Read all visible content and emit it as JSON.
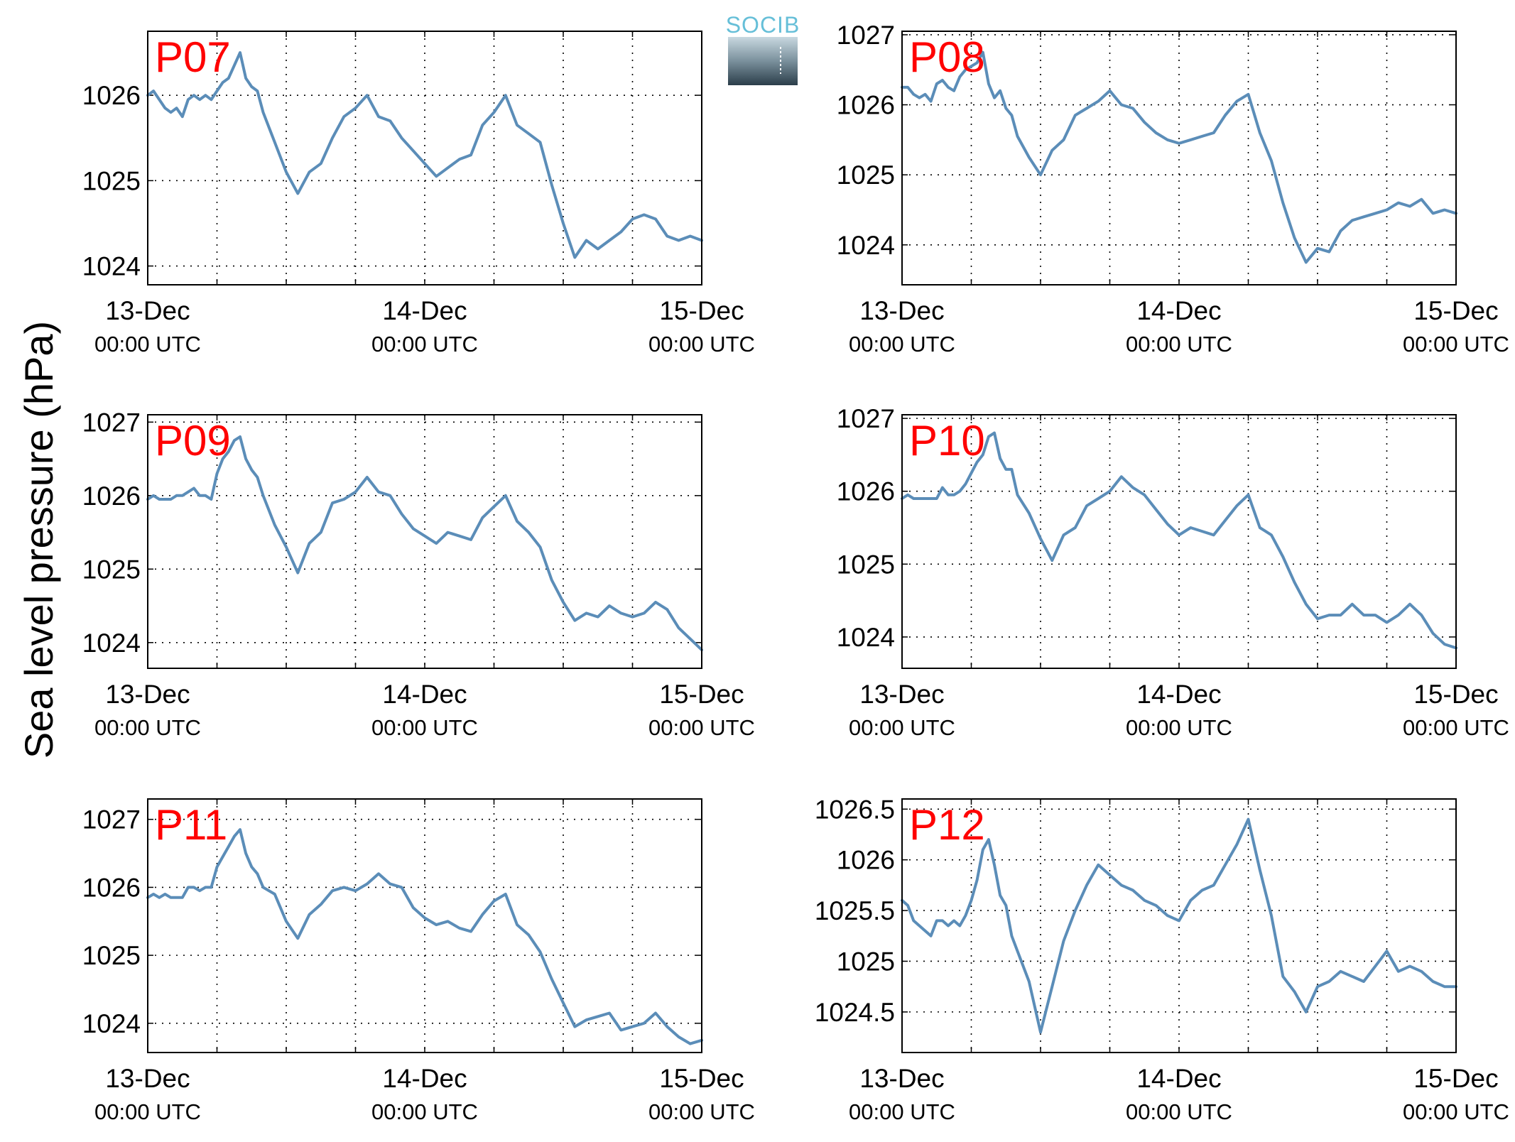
{
  "ylabel": "Sea level pressure (hPa)",
  "logo": {
    "text": "SOCIB"
  },
  "style": {
    "line_color": "#5b8db8",
    "title_color": "#ff0000",
    "grid": "dotted"
  },
  "chart_data": [
    {
      "type": "line",
      "title": "P07",
      "ylim": [
        1023.78,
        1026.75
      ],
      "yticks": [
        1024,
        1025,
        1026
      ],
      "xlim": [
        0,
        48
      ],
      "xticks": [
        0,
        6,
        12,
        18,
        24,
        30,
        36,
        42,
        48
      ],
      "xlabels": [
        {
          "x": 0,
          "date": "13-Dec",
          "time": "00:00 UTC"
        },
        {
          "x": 24,
          "date": "14-Dec",
          "time": "00:00 UTC"
        },
        {
          "x": 48,
          "date": "15-Dec",
          "time": "00:00 UTC"
        }
      ],
      "series": [
        {
          "x": [
            0,
            0.5,
            1,
            1.5,
            2,
            2.5,
            3,
            3.5,
            4,
            4.5,
            5,
            5.5,
            6,
            6.5,
            7,
            7.5,
            8,
            8.5,
            9,
            9.5,
            10,
            11,
            12,
            13,
            14,
            15,
            16,
            17,
            18,
            19,
            20,
            21,
            22,
            23,
            24,
            25,
            26,
            27,
            28,
            29,
            30,
            31,
            32,
            33,
            34,
            35,
            36,
            37,
            38,
            39,
            40,
            41,
            42,
            43,
            44,
            45,
            46,
            47,
            48
          ],
          "y": [
            1026.0,
            1026.05,
            1025.95,
            1025.85,
            1025.8,
            1025.85,
            1025.75,
            1025.95,
            1026.0,
            1025.95,
            1026.0,
            1025.95,
            1026.05,
            1026.15,
            1026.2,
            1026.35,
            1026.5,
            1026.2,
            1026.1,
            1026.05,
            1025.8,
            1025.45,
            1025.1,
            1024.85,
            1025.1,
            1025.2,
            1025.5,
            1025.75,
            1025.85,
            1026.0,
            1025.75,
            1025.7,
            1025.5,
            1025.35,
            1025.2,
            1025.05,
            1025.15,
            1025.25,
            1025.3,
            1025.65,
            1025.8,
            1026.0,
            1025.65,
            1025.55,
            1025.45,
            1024.95,
            1024.5,
            1024.1,
            1024.3,
            1024.2,
            1024.3,
            1024.4,
            1024.55,
            1024.6,
            1024.55,
            1024.35,
            1024.3,
            1024.35,
            1024.3
          ]
        }
      ]
    },
    {
      "type": "line",
      "title": "P08",
      "ylim": [
        1023.43,
        1027.05
      ],
      "yticks": [
        1024,
        1025,
        1026,
        1027
      ],
      "xlim": [
        0,
        48
      ],
      "xticks": [
        0,
        6,
        12,
        18,
        24,
        30,
        36,
        42,
        48
      ],
      "xlabels": [
        {
          "x": 0,
          "date": "13-Dec",
          "time": "00:00 UTC"
        },
        {
          "x": 24,
          "date": "14-Dec",
          "time": "00:00 UTC"
        },
        {
          "x": 48,
          "date": "15-Dec",
          "time": "00:00 UTC"
        }
      ],
      "series": [
        {
          "x": [
            0,
            0.5,
            1,
            1.5,
            2,
            2.5,
            3,
            3.5,
            4,
            4.5,
            5,
            5.5,
            6,
            6.5,
            7,
            7.5,
            8,
            8.5,
            9,
            9.5,
            10,
            11,
            12,
            13,
            14,
            15,
            16,
            17,
            18,
            19,
            20,
            21,
            22,
            23,
            24,
            25,
            26,
            27,
            28,
            29,
            30,
            31,
            32,
            33,
            34,
            35,
            36,
            37,
            38,
            39,
            40,
            41,
            42,
            43,
            44,
            45,
            46,
            47,
            48
          ],
          "y": [
            1026.25,
            1026.25,
            1026.15,
            1026.1,
            1026.15,
            1026.05,
            1026.3,
            1026.35,
            1026.25,
            1026.2,
            1026.4,
            1026.5,
            1026.55,
            1026.6,
            1026.75,
            1026.3,
            1026.1,
            1026.2,
            1025.95,
            1025.85,
            1025.55,
            1025.25,
            1025.0,
            1025.35,
            1025.5,
            1025.85,
            1025.95,
            1026.05,
            1026.2,
            1026.0,
            1025.95,
            1025.75,
            1025.6,
            1025.5,
            1025.45,
            1025.5,
            1025.55,
            1025.6,
            1025.85,
            1026.05,
            1026.15,
            1025.6,
            1025.2,
            1024.6,
            1024.1,
            1023.75,
            1023.95,
            1023.9,
            1024.2,
            1024.35,
            1024.4,
            1024.45,
            1024.5,
            1024.6,
            1024.55,
            1024.65,
            1024.45,
            1024.5,
            1024.45
          ]
        }
      ]
    },
    {
      "type": "line",
      "title": "P09",
      "ylim": [
        1023.65,
        1027.1
      ],
      "yticks": [
        1024,
        1025,
        1026,
        1027
      ],
      "xlim": [
        0,
        48
      ],
      "xticks": [
        0,
        6,
        12,
        18,
        24,
        30,
        36,
        42,
        48
      ],
      "xlabels": [
        {
          "x": 0,
          "date": "13-Dec",
          "time": "00:00 UTC"
        },
        {
          "x": 24,
          "date": "14-Dec",
          "time": "00:00 UTC"
        },
        {
          "x": 48,
          "date": "15-Dec",
          "time": "00:00 UTC"
        }
      ],
      "series": [
        {
          "x": [
            0,
            0.5,
            1,
            1.5,
            2,
            2.5,
            3,
            3.5,
            4,
            4.5,
            5,
            5.5,
            6,
            6.5,
            7,
            7.5,
            8,
            8.5,
            9,
            9.5,
            10,
            11,
            12,
            13,
            14,
            15,
            16,
            17,
            18,
            19,
            20,
            21,
            22,
            23,
            24,
            25,
            26,
            27,
            28,
            29,
            30,
            31,
            32,
            33,
            34,
            35,
            36,
            37,
            38,
            39,
            40,
            41,
            42,
            43,
            44,
            45,
            46,
            47,
            48
          ],
          "y": [
            1025.95,
            1026.0,
            1025.95,
            1025.95,
            1025.95,
            1026.0,
            1026.0,
            1026.05,
            1026.1,
            1026.0,
            1026.0,
            1025.95,
            1026.3,
            1026.5,
            1026.6,
            1026.75,
            1026.8,
            1026.5,
            1026.35,
            1026.25,
            1026.0,
            1025.6,
            1025.3,
            1024.95,
            1025.35,
            1025.5,
            1025.9,
            1025.95,
            1026.05,
            1026.25,
            1026.05,
            1026.0,
            1025.75,
            1025.55,
            1025.45,
            1025.35,
            1025.5,
            1025.45,
            1025.4,
            1025.7,
            1025.85,
            1026.0,
            1025.65,
            1025.5,
            1025.3,
            1024.85,
            1024.55,
            1024.3,
            1024.4,
            1024.35,
            1024.5,
            1024.4,
            1024.35,
            1024.4,
            1024.55,
            1024.45,
            1024.2,
            1024.05,
            1023.9
          ]
        }
      ]
    },
    {
      "type": "line",
      "title": "P10",
      "ylim": [
        1023.57,
        1027.05
      ],
      "yticks": [
        1024,
        1025,
        1026,
        1027
      ],
      "xlim": [
        0,
        48
      ],
      "xticks": [
        0,
        6,
        12,
        18,
        24,
        30,
        36,
        42,
        48
      ],
      "xlabels": [
        {
          "x": 0,
          "date": "13-Dec",
          "time": "00:00 UTC"
        },
        {
          "x": 24,
          "date": "14-Dec",
          "time": "00:00 UTC"
        },
        {
          "x": 48,
          "date": "15-Dec",
          "time": "00:00 UTC"
        }
      ],
      "series": [
        {
          "x": [
            0,
            0.5,
            1,
            1.5,
            2,
            2.5,
            3,
            3.5,
            4,
            4.5,
            5,
            5.5,
            6,
            6.5,
            7,
            7.5,
            8,
            8.5,
            9,
            9.5,
            10,
            11,
            12,
            13,
            14,
            15,
            16,
            17,
            18,
            19,
            20,
            21,
            22,
            23,
            24,
            25,
            26,
            27,
            28,
            29,
            30,
            31,
            32,
            33,
            34,
            35,
            36,
            37,
            38,
            39,
            40,
            41,
            42,
            43,
            44,
            45,
            46,
            47,
            48
          ],
          "y": [
            1025.9,
            1025.95,
            1025.9,
            1025.9,
            1025.9,
            1025.9,
            1025.9,
            1026.05,
            1025.95,
            1025.95,
            1026.0,
            1026.1,
            1026.25,
            1026.4,
            1026.5,
            1026.75,
            1026.8,
            1026.45,
            1026.3,
            1026.3,
            1025.95,
            1025.7,
            1025.35,
            1025.05,
            1025.4,
            1025.5,
            1025.8,
            1025.9,
            1026.0,
            1026.2,
            1026.05,
            1025.95,
            1025.75,
            1025.55,
            1025.4,
            1025.5,
            1025.45,
            1025.4,
            1025.6,
            1025.8,
            1025.95,
            1025.5,
            1025.4,
            1025.1,
            1024.75,
            1024.45,
            1024.25,
            1024.3,
            1024.3,
            1024.45,
            1024.3,
            1024.3,
            1024.2,
            1024.3,
            1024.45,
            1024.3,
            1024.05,
            1023.9,
            1023.85
          ]
        }
      ]
    },
    {
      "type": "line",
      "title": "P11",
      "ylim": [
        1023.57,
        1027.3
      ],
      "yticks": [
        1024,
        1025,
        1026,
        1027
      ],
      "xlim": [
        0,
        48
      ],
      "xticks": [
        0,
        6,
        12,
        18,
        24,
        30,
        36,
        42,
        48
      ],
      "xlabels": [
        {
          "x": 0,
          "date": "13-Dec",
          "time": "00:00 UTC"
        },
        {
          "x": 24,
          "date": "14-Dec",
          "time": "00:00 UTC"
        },
        {
          "x": 48,
          "date": "15-Dec",
          "time": "00:00 UTC"
        }
      ],
      "series": [
        {
          "x": [
            0,
            0.5,
            1,
            1.5,
            2,
            2.5,
            3,
            3.5,
            4,
            4.5,
            5,
            5.5,
            6,
            6.5,
            7,
            7.5,
            8,
            8.5,
            9,
            9.5,
            10,
            11,
            12,
            13,
            14,
            15,
            16,
            17,
            18,
            19,
            20,
            21,
            22,
            23,
            24,
            25,
            26,
            27,
            28,
            29,
            30,
            31,
            32,
            33,
            34,
            35,
            36,
            37,
            38,
            39,
            40,
            41,
            42,
            43,
            44,
            45,
            46,
            47,
            48
          ],
          "y": [
            1025.85,
            1025.9,
            1025.85,
            1025.9,
            1025.85,
            1025.85,
            1025.85,
            1026.0,
            1026.0,
            1025.95,
            1026.0,
            1026.0,
            1026.3,
            1026.45,
            1026.6,
            1026.75,
            1026.85,
            1026.5,
            1026.3,
            1026.2,
            1026.0,
            1025.9,
            1025.5,
            1025.25,
            1025.6,
            1025.75,
            1025.95,
            1026.0,
            1025.95,
            1026.05,
            1026.2,
            1026.05,
            1026.0,
            1025.7,
            1025.55,
            1025.45,
            1025.5,
            1025.4,
            1025.35,
            1025.6,
            1025.8,
            1025.9,
            1025.45,
            1025.3,
            1025.05,
            1024.65,
            1024.3,
            1023.95,
            1024.05,
            1024.1,
            1024.15,
            1023.9,
            1023.95,
            1024.0,
            1024.15,
            1023.95,
            1023.8,
            1023.7,
            1023.75
          ]
        }
      ]
    },
    {
      "type": "line",
      "title": "P12",
      "ylim": [
        1024.1,
        1026.6
      ],
      "yticks": [
        1024.5,
        1025,
        1025.5,
        1026,
        1026.5
      ],
      "xlim": [
        0,
        48
      ],
      "xticks": [
        0,
        6,
        12,
        18,
        24,
        30,
        36,
        42,
        48
      ],
      "xlabels": [
        {
          "x": 0,
          "date": "13-Dec",
          "time": "00:00 UTC"
        },
        {
          "x": 24,
          "date": "14-Dec",
          "time": "00:00 UTC"
        },
        {
          "x": 48,
          "date": "15-Dec",
          "time": "00:00 UTC"
        }
      ],
      "series": [
        {
          "x": [
            0,
            0.5,
            1,
            1.5,
            2,
            2.5,
            3,
            3.5,
            4,
            4.5,
            5,
            5.5,
            6,
            6.5,
            7,
            7.5,
            8,
            8.5,
            9,
            9.5,
            10,
            11,
            12,
            13,
            14,
            15,
            16,
            17,
            18,
            19,
            20,
            21,
            22,
            23,
            24,
            25,
            26,
            27,
            28,
            29,
            30,
            31,
            32,
            33,
            34,
            35,
            36,
            37,
            38,
            39,
            40,
            41,
            42,
            43,
            44,
            45,
            46,
            47,
            48
          ],
          "y": [
            1025.6,
            1025.55,
            1025.4,
            1025.35,
            1025.3,
            1025.25,
            1025.4,
            1025.4,
            1025.35,
            1025.4,
            1025.35,
            1025.45,
            1025.6,
            1025.8,
            1026.1,
            1026.2,
            1025.95,
            1025.65,
            1025.55,
            1025.25,
            1025.1,
            1024.8,
            1024.3,
            1024.75,
            1025.2,
            1025.5,
            1025.75,
            1025.95,
            1025.85,
            1025.75,
            1025.7,
            1025.6,
            1025.55,
            1025.45,
            1025.4,
            1025.6,
            1025.7,
            1025.75,
            1025.95,
            1026.15,
            1026.4,
            1025.9,
            1025.45,
            1024.85,
            1024.7,
            1024.5,
            1024.75,
            1024.8,
            1024.9,
            1024.85,
            1024.8,
            1024.95,
            1025.1,
            1024.9,
            1024.95,
            1024.9,
            1024.8,
            1024.75,
            1024.75
          ]
        }
      ]
    }
  ]
}
